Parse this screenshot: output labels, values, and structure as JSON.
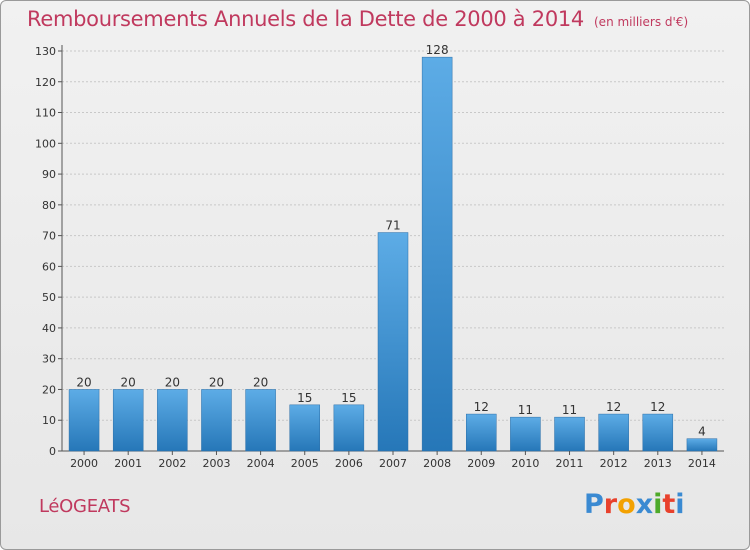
{
  "header": {
    "title": "Remboursements Annuels de la Dette de 2000 à 2014",
    "unit": "(en milliers d'€)"
  },
  "footer": {
    "commune": "LéOGEATS",
    "brand": "Proxiti"
  },
  "colors": {
    "title": "#c0395e",
    "bar_top": "#5dace6",
    "bar_bottom": "#2677b8",
    "brand_letters": [
      "#3a8ad2",
      "#e8412c",
      "#f3a100",
      "#3a8ad2",
      "#4eaa2a",
      "#e8412c",
      "#3a8ad2"
    ]
  },
  "chart_data": {
    "type": "bar",
    "title": "Remboursements Annuels de la Dette de 2000 à 2014",
    "categories": [
      "2000",
      "2001",
      "2002",
      "2003",
      "2004",
      "2005",
      "2006",
      "2007",
      "2008",
      "2009",
      "2010",
      "2011",
      "2012",
      "2013",
      "2014"
    ],
    "values": [
      20,
      20,
      20,
      20,
      20,
      15,
      15,
      71,
      128,
      12,
      11,
      11,
      12,
      12,
      4
    ],
    "ylim": [
      0,
      130
    ],
    "yticks": [
      0,
      10,
      20,
      30,
      40,
      50,
      60,
      70,
      80,
      90,
      100,
      110,
      120,
      130
    ],
    "grid": true,
    "data_labels": true
  }
}
